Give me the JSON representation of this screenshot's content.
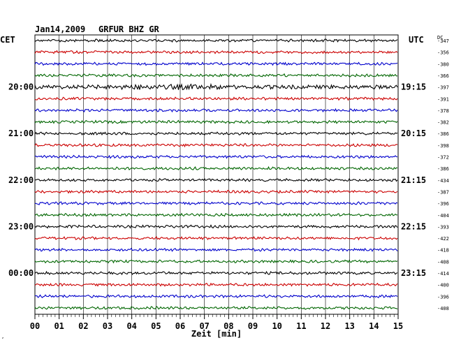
{
  "header": {
    "date": "Jan14,2009",
    "station": "GRFUR BHZ GR",
    "left_tz": "CET",
    "right_tz": "UTC",
    "dc_label": "DC"
  },
  "footer": {
    "small_mark": ","
  },
  "chart_data": {
    "type": "line",
    "title": "Jan14,2009   GRFUR BHZ GR",
    "xlabel": "Zeit [min]",
    "ylabel": "",
    "xlim": [
      0,
      15
    ],
    "x_ticks": [
      "00",
      "01",
      "02",
      "03",
      "04",
      "05",
      "06",
      "07",
      "08",
      "09",
      "10",
      "11",
      "12",
      "13",
      "14",
      "15"
    ],
    "grid": true,
    "traces_per_hour": 4,
    "minutes_per_trace": 15,
    "trace_colors": [
      "#000000",
      "#cc0000",
      "#0000cc",
      "#006600"
    ],
    "left_hour_labels": [
      {
        "trace": 4,
        "label": "20:00"
      },
      {
        "trace": 8,
        "label": "21:00"
      },
      {
        "trace": 12,
        "label": "22:00"
      },
      {
        "trace": 16,
        "label": "23:00"
      },
      {
        "trace": 20,
        "label": "00:00"
      }
    ],
    "right_hour_labels": [
      {
        "trace": 4,
        "label": "19:15"
      },
      {
        "trace": 8,
        "label": "20:15"
      },
      {
        "trace": 12,
        "label": "21:15"
      },
      {
        "trace": 16,
        "label": "22:15"
      },
      {
        "trace": 20,
        "label": "23:15"
      }
    ],
    "dc_offsets": [
      -347,
      -356,
      -380,
      -366,
      -397,
      -391,
      -378,
      -382,
      -386,
      -398,
      -372,
      -386,
      -434,
      -387,
      -396,
      -404,
      -393,
      -422,
      -418,
      -408,
      -414,
      -400,
      -396,
      -408
    ],
    "amplitude_level": [
      1,
      1,
      1,
      1,
      1.6,
      1,
      1,
      1,
      1,
      1,
      1,
      1,
      1,
      1,
      1,
      1,
      1,
      1,
      1,
      1,
      1,
      1,
      1,
      1
    ]
  }
}
